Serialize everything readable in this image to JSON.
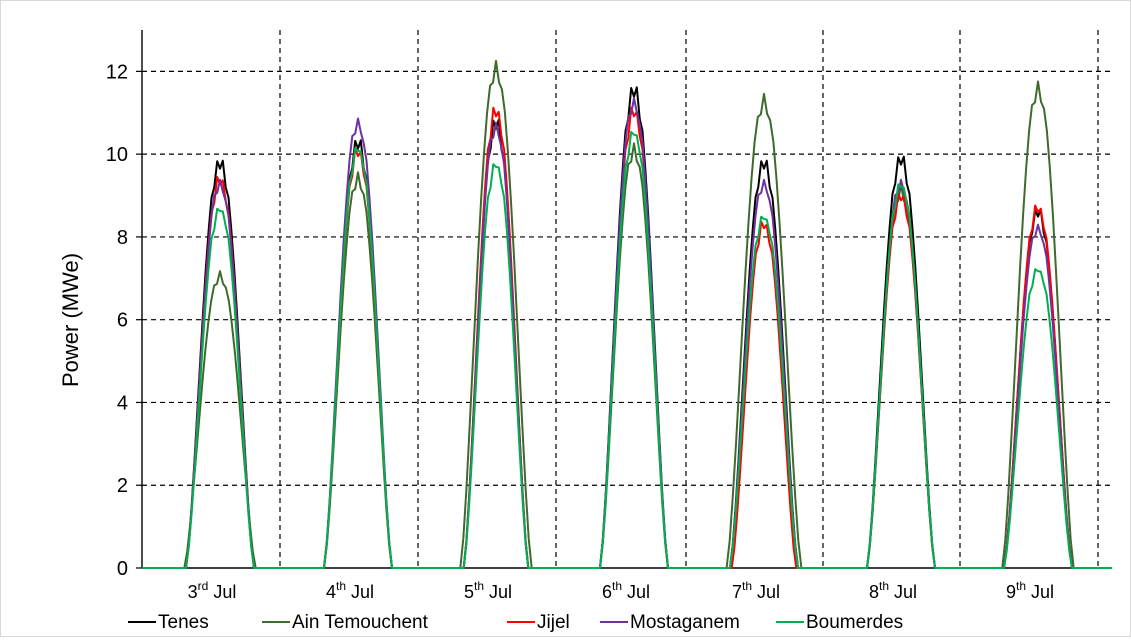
{
  "chart_data": {
    "type": "line",
    "ylabel": "Power (MWe)",
    "ylim": [
      0,
      13
    ],
    "yticks": [
      0,
      2,
      4,
      6,
      8,
      10,
      12
    ],
    "grid": true,
    "legend_position": "bottom",
    "categories": [
      {
        "base": "3",
        "sup": "rd",
        "rest": " Jul"
      },
      {
        "base": "4",
        "sup": "th",
        "rest": " Jul"
      },
      {
        "base": "5",
        "sup": "th",
        "rest": " Jul"
      },
      {
        "base": "6",
        "sup": "th",
        "rest": " Jul"
      },
      {
        "base": "7",
        "sup": "th",
        "rest": " Jul"
      },
      {
        "base": "8",
        "sup": "th",
        "rest": " Jul"
      },
      {
        "base": "9",
        "sup": "th",
        "rest": " Jul"
      }
    ],
    "series": [
      {
        "name": "Tenes",
        "color": "#000000",
        "peaks": [
          10.0,
          10.5,
          11.0,
          11.8,
          10.0,
          10.1,
          8.8
        ],
        "widths": [
          1.0,
          1.0,
          0.95,
          1.0,
          1.0,
          1.0,
          1.0
        ]
      },
      {
        "name": "Ain Temouchent",
        "color": "#3e6b2b",
        "peaks": [
          7.2,
          9.6,
          12.3,
          10.3,
          11.5,
          9.3,
          11.8
        ],
        "widths": [
          1.05,
          1.0,
          1.05,
          1.0,
          1.1,
          1.0,
          1.05
        ]
      },
      {
        "name": "Jijel",
        "color": "#ff0000",
        "peaks": [
          9.6,
          10.3,
          11.3,
          11.3,
          8.5,
          9.2,
          8.9
        ],
        "widths": [
          1.0,
          1.0,
          0.95,
          1.0,
          0.95,
          1.0,
          1.0
        ]
      },
      {
        "name": "Mostaganem",
        "color": "#7030a0",
        "peaks": [
          9.5,
          11.0,
          10.9,
          11.5,
          9.5,
          9.5,
          8.4
        ],
        "widths": [
          1.0,
          1.0,
          0.95,
          1.0,
          1.0,
          1.0,
          1.0
        ]
      },
      {
        "name": "Boumerdes",
        "color": "#00b050",
        "peaks": [
          8.9,
          10.4,
          10.0,
          10.8,
          8.7,
          9.5,
          7.4
        ],
        "widths": [
          1.0,
          1.0,
          0.95,
          1.0,
          1.0,
          1.0,
          1.0
        ]
      }
    ]
  }
}
